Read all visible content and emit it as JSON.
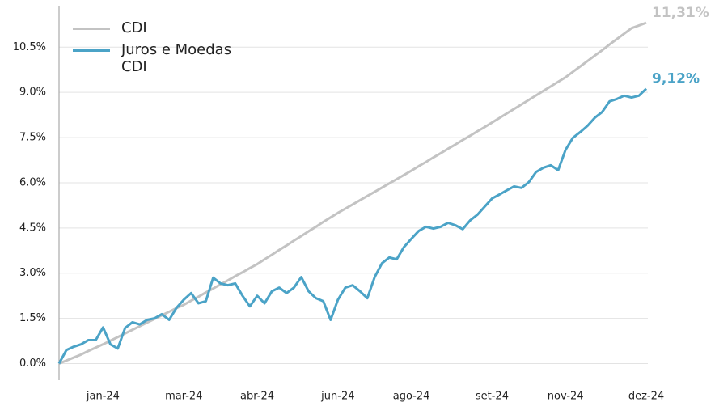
{
  "chart_data": {
    "type": "line",
    "categories": [
      null,
      null,
      null,
      null,
      null,
      null,
      "jan-24",
      null,
      null,
      null,
      null,
      null,
      null,
      null,
      null,
      null,
      null,
      "mar-24",
      null,
      null,
      null,
      null,
      null,
      null,
      null,
      null,
      null,
      "abr-24",
      null,
      null,
      null,
      null,
      null,
      null,
      null,
      null,
      null,
      null,
      "jun-24",
      null,
      null,
      null,
      null,
      null,
      null,
      null,
      null,
      null,
      "ago-24",
      null,
      null,
      null,
      null,
      null,
      null,
      null,
      null,
      null,
      null,
      "set-24",
      null,
      null,
      null,
      null,
      null,
      null,
      null,
      null,
      null,
      "nov-24",
      null,
      null,
      null,
      null,
      null,
      null,
      null,
      null,
      null,
      null,
      "dez-24"
    ],
    "series": [
      {
        "name": "CDI",
        "color": "#c3c3c3",
        "values": [
          0,
          0.1,
          0.2,
          0.3,
          0.42,
          0.53,
          0.64,
          0.76,
          0.88,
          1.0,
          1.12,
          1.24,
          1.36,
          1.48,
          1.6,
          1.72,
          1.84,
          1.95,
          2.09,
          2.22,
          2.36,
          2.49,
          2.63,
          2.76,
          2.9,
          3.03,
          3.17,
          3.3,
          3.46,
          3.61,
          3.77,
          3.92,
          4.08,
          4.23,
          4.39,
          4.54,
          4.7,
          4.85,
          5.0,
          5.14,
          5.28,
          5.42,
          5.56,
          5.7,
          5.84,
          5.98,
          6.12,
          6.26,
          6.4,
          6.55,
          6.69,
          6.84,
          6.98,
          7.13,
          7.27,
          7.42,
          7.56,
          7.71,
          7.85,
          8.0,
          8.15,
          8.3,
          8.45,
          8.6,
          8.75,
          8.9,
          9.05,
          9.2,
          9.35,
          9.5,
          9.68,
          9.86,
          10.04,
          10.22,
          10.4,
          10.59,
          10.77,
          10.95,
          11.13,
          11.22,
          11.31
        ],
        "value_labels": [
          null,
          null,
          null,
          null,
          null,
          null,
          null,
          null,
          null,
          null,
          null,
          null,
          null,
          null,
          null,
          null,
          null,
          null,
          null,
          null,
          null,
          null,
          null,
          null,
          null,
          null,
          null,
          null,
          null,
          null,
          null,
          null,
          null,
          null,
          null,
          null,
          null,
          null,
          null,
          null,
          null,
          null,
          null,
          null,
          null,
          null,
          null,
          null,
          null,
          null,
          null,
          null,
          null,
          null,
          null,
          null,
          null,
          null,
          null,
          null,
          null,
          null,
          null,
          null,
          null,
          null,
          null,
          null,
          null,
          null,
          null,
          null,
          null,
          null,
          null,
          null,
          null,
          null,
          null,
          null,
          "11,31%"
        ]
      },
      {
        "name": "Juros e Moedas CDI",
        "color": "#4ba3c7",
        "values": [
          0,
          0.45,
          0.56,
          0.64,
          0.78,
          0.78,
          1.2,
          0.64,
          0.5,
          1.18,
          1.37,
          1.3,
          1.45,
          1.5,
          1.64,
          1.45,
          1.85,
          2.12,
          2.34,
          2.0,
          2.07,
          2.85,
          2.66,
          2.6,
          2.66,
          2.25,
          1.9,
          2.25,
          2.0,
          2.4,
          2.52,
          2.34,
          2.52,
          2.87,
          2.4,
          2.17,
          2.07,
          1.45,
          2.12,
          2.52,
          2.6,
          2.4,
          2.17,
          2.87,
          3.33,
          3.52,
          3.46,
          3.87,
          4.14,
          4.4,
          4.54,
          4.48,
          4.54,
          4.67,
          4.59,
          4.46,
          4.75,
          4.94,
          5.21,
          5.48,
          5.61,
          5.75,
          5.88,
          5.83,
          6.02,
          6.36,
          6.5,
          6.58,
          6.42,
          7.09,
          7.49,
          7.68,
          7.89,
          8.16,
          8.35,
          8.7,
          8.78,
          8.89,
          8.83,
          8.89,
          9.12
        ],
        "value_labels": [
          null,
          null,
          null,
          null,
          null,
          null,
          null,
          null,
          null,
          null,
          null,
          null,
          null,
          null,
          null,
          null,
          null,
          null,
          null,
          null,
          null,
          null,
          null,
          null,
          null,
          null,
          null,
          null,
          null,
          null,
          null,
          null,
          null,
          null,
          null,
          null,
          null,
          null,
          null,
          null,
          null,
          null,
          null,
          null,
          null,
          null,
          null,
          null,
          null,
          null,
          null,
          null,
          null,
          null,
          null,
          null,
          null,
          null,
          null,
          null,
          null,
          null,
          null,
          null,
          null,
          null,
          null,
          null,
          null,
          null,
          null,
          null,
          null,
          null,
          null,
          null,
          null,
          null,
          null,
          null,
          "9,12%"
        ]
      }
    ],
    "ylim": [
      -0.55,
      11.85
    ],
    "yticks": [
      {
        "value": 0,
        "label": "0.0%"
      },
      {
        "value": 1.5,
        "label": "1.5%"
      },
      {
        "value": 3,
        "label": "3.0%"
      },
      {
        "value": 4.5,
        "label": "4.5%"
      },
      {
        "value": 6,
        "label": "6.0%"
      },
      {
        "value": 7.5,
        "label": "7.5%"
      },
      {
        "value": 9,
        "label": "9.0%"
      },
      {
        "value": 10.5,
        "label": "10.5%"
      }
    ],
    "grid": true,
    "legend": "upper-left"
  }
}
